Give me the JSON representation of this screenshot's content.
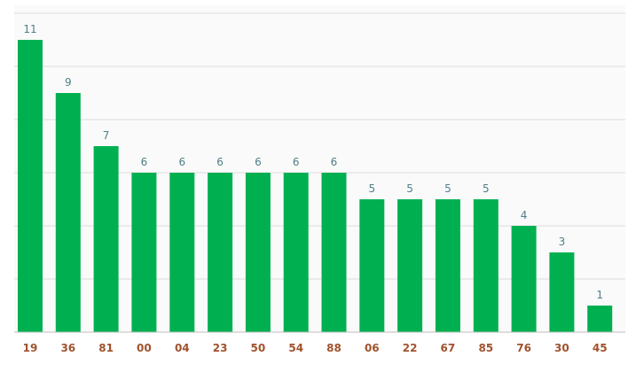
{
  "chart_data": {
    "type": "bar",
    "categories": [
      "19",
      "36",
      "81",
      "00",
      "04",
      "23",
      "50",
      "54",
      "88",
      "06",
      "22",
      "67",
      "85",
      "76",
      "30",
      "45"
    ],
    "values": [
      11,
      9,
      7,
      6,
      6,
      6,
      6,
      6,
      6,
      5,
      5,
      5,
      5,
      4,
      3,
      1
    ],
    "title": "",
    "xlabel": "",
    "ylabel": "",
    "ylim": [
      0,
      12
    ],
    "grid": true,
    "legend": "none",
    "colors": {
      "bar": "#00b050",
      "value_label": "#4f7f86",
      "tick_label": "#a0522d",
      "grid": "#dcdcdc",
      "plot_background": "#fafafa",
      "baseline": "#bdbdbd"
    }
  }
}
